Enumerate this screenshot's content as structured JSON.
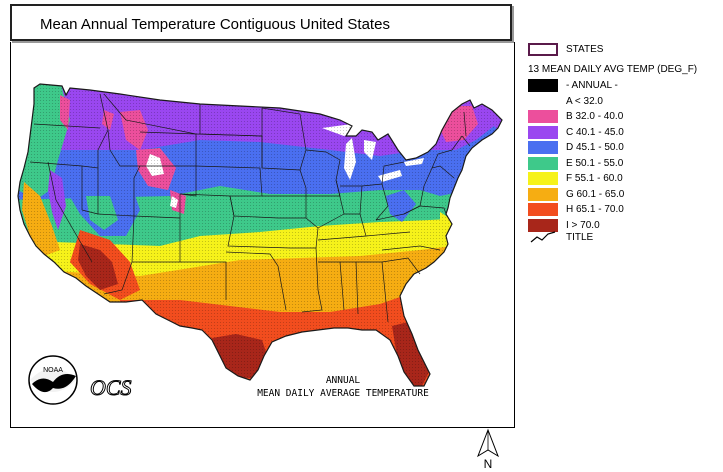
{
  "title": "Mean Annual Temperature Contiguous United States",
  "legend": {
    "states_label": "STATES",
    "theme_label": "13 MEAN DAILY AVG TEMP (DEG_F)",
    "annual_label": "- ANNUAL -",
    "classes": [
      {
        "code": "A",
        "label": "A < 32.0",
        "color": "#ffffff"
      },
      {
        "code": "B",
        "label": "B 32.0 - 40.0",
        "color": "#ec4f9c"
      },
      {
        "code": "C",
        "label": "C 40.1 - 45.0",
        "color": "#9a47f0"
      },
      {
        "code": "D",
        "label": "D 45.1 - 50.0",
        "color": "#4a6ff0"
      },
      {
        "code": "E",
        "label": "E 50.1 - 55.0",
        "color": "#3ec98a"
      },
      {
        "code": "F",
        "label": "F 55.1 - 60.0",
        "color": "#f6f21a"
      },
      {
        "code": "G",
        "label": "G 60.1 - 65.0",
        "color": "#f6ad12"
      },
      {
        "code": "H",
        "label": "H 65.1 - 70.0",
        "color": "#f24d1e"
      },
      {
        "code": "I",
        "label": "I > 70.0",
        "color": "#a8261a"
      }
    ],
    "title_line_label": "TITLE"
  },
  "map": {
    "subtitle_line1": "ANNUAL",
    "subtitle_line2": "MEAN DAILY AVERAGE TEMPERATURE",
    "noaa_text": "NOAA",
    "ocs_text": "OCS",
    "north_label": "N"
  },
  "colors": {
    "state_border": "#1a1a1a",
    "frame": "#000000"
  }
}
